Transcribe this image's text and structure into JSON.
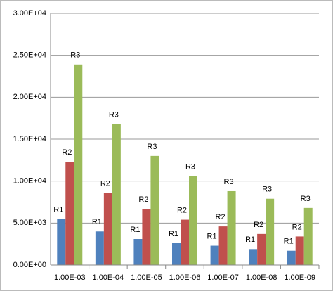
{
  "chart_data": {
    "type": "bar",
    "categories": [
      "1.00E-03",
      "1.00E-04",
      "1.00E-05",
      "1.00E-06",
      "1.00E-07",
      "1.00E-08",
      "1.00E-09"
    ],
    "series": [
      {
        "name": "R1",
        "color": "#4f81bd",
        "values": [
          5500,
          4000,
          3100,
          2600,
          2300,
          1900,
          1700
        ]
      },
      {
        "name": "R2",
        "color": "#c0504d",
        "values": [
          12300,
          8600,
          6700,
          5400,
          4600,
          3700,
          3400
        ]
      },
      {
        "name": "R3",
        "color": "#9bbb59",
        "values": [
          23900,
          16800,
          13000,
          10600,
          8800,
          7900,
          6800
        ]
      }
    ],
    "ylim": [
      0,
      30000
    ],
    "yticks": [
      {
        "value": 0,
        "label": "0.00E+00"
      },
      {
        "value": 5000,
        "label": "5.00E+03"
      },
      {
        "value": 10000,
        "label": "1.00E+04"
      },
      {
        "value": 15000,
        "label": "1.50E+04"
      },
      {
        "value": 20000,
        "label": "2.00E+04"
      },
      {
        "value": 25000,
        "label": "2.50E+04"
      },
      {
        "value": 30000,
        "label": "3.00E+04"
      }
    ],
    "grid": true
  }
}
